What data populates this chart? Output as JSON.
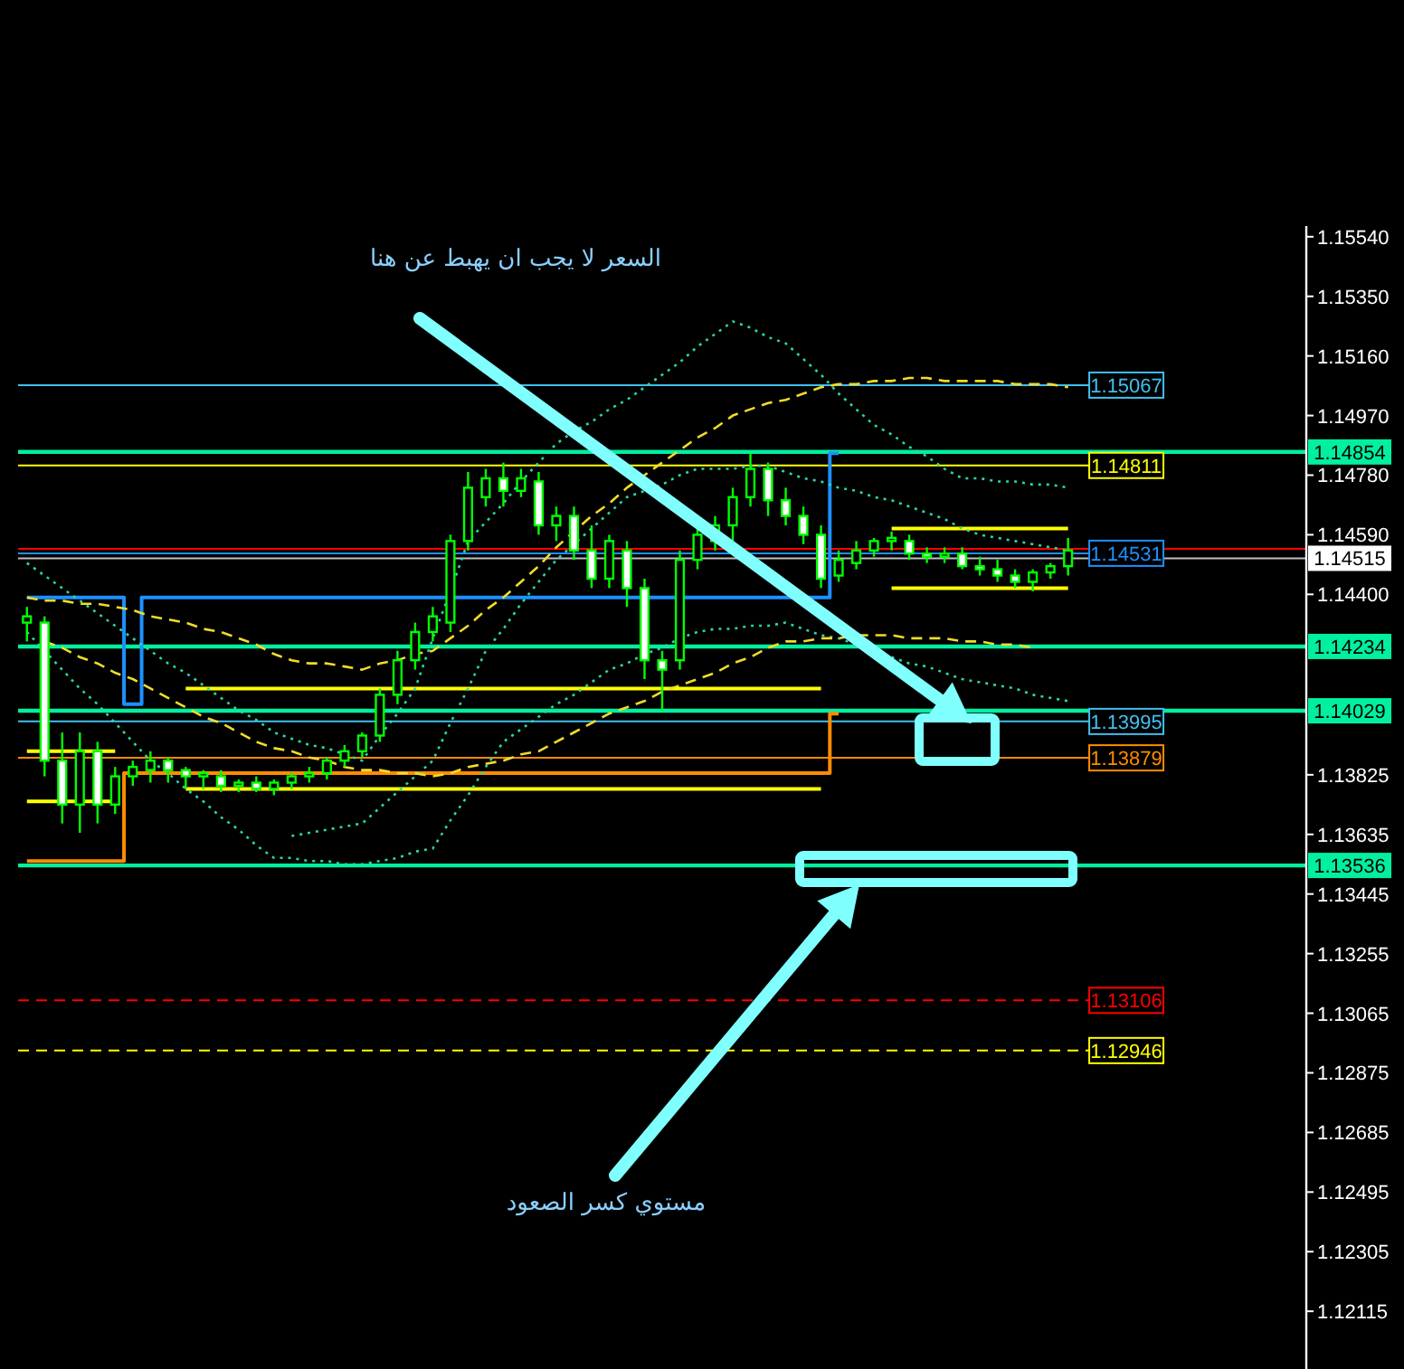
{
  "chart_data": {
    "type": "candlestick",
    "categories": [
      null,
      null,
      null,
      null,
      null,
      null,
      null,
      null,
      null,
      null,
      null,
      null,
      null,
      null,
      null,
      null,
      null,
      null,
      null,
      null,
      null,
      null,
      null,
      null,
      null,
      null,
      null,
      null,
      null,
      null,
      null,
      null,
      null,
      null,
      null,
      null,
      null,
      null,
      null,
      null,
      null,
      null,
      null,
      null,
      null,
      null,
      null,
      null,
      null,
      null,
      null,
      null,
      null,
      null,
      null,
      null,
      null,
      null,
      null,
      null,
      null,
      null,
      null,
      null,
      null,
      null,
      null,
      null,
      null,
      null,
      null,
      null,
      null
    ],
    "ohlc": [
      [
        1.1431,
        1.1436,
        1.1425,
        1.1433
      ],
      [
        1.1431,
        1.1433,
        1.1382,
        1.1387
      ],
      [
        1.1387,
        1.1396,
        1.1367,
        1.1373
      ],
      [
        1.1373,
        1.1396,
        1.1364,
        1.139
      ],
      [
        1.139,
        1.1393,
        1.1367,
        1.1373
      ],
      [
        1.1373,
        1.1385,
        1.137,
        1.1382
      ],
      [
        1.1382,
        1.1387,
        1.1379,
        1.1385
      ],
      [
        1.1384,
        1.139,
        1.138,
        1.1387
      ],
      [
        1.1387,
        1.1388,
        1.138,
        1.1384
      ],
      [
        1.1384,
        1.1385,
        1.1378,
        1.1382
      ],
      [
        1.1382,
        1.1384,
        1.1378,
        1.1383
      ],
      [
        1.1382,
        1.1384,
        1.1377,
        1.1379
      ],
      [
        1.1379,
        1.1381,
        1.1377,
        1.138
      ],
      [
        1.138,
        1.1382,
        1.1377,
        1.1378
      ],
      [
        1.1378,
        1.1381,
        1.1376,
        1.138
      ],
      [
        1.138,
        1.1383,
        1.1378,
        1.1382
      ],
      [
        1.1382,
        1.1385,
        1.138,
        1.1383
      ],
      [
        1.1383,
        1.1388,
        1.1381,
        1.1387
      ],
      [
        1.1387,
        1.1392,
        1.1385,
        1.139
      ],
      [
        1.139,
        1.1396,
        1.1388,
        1.1395
      ],
      [
        1.1395,
        1.141,
        1.1393,
        1.1408
      ],
      [
        1.1408,
        1.1422,
        1.1405,
        1.1419
      ],
      [
        1.1419,
        1.1431,
        1.1416,
        1.1428
      ],
      [
        1.1428,
        1.1436,
        1.1425,
        1.1433
      ],
      [
        1.1431,
        1.1459,
        1.1428,
        1.1457
      ],
      [
        1.1457,
        1.1479,
        1.1454,
        1.1474
      ],
      [
        1.1471,
        1.148,
        1.1468,
        1.1477
      ],
      [
        1.1477,
        1.1482,
        1.1468,
        1.1473
      ],
      [
        1.1473,
        1.148,
        1.1471,
        1.1477
      ],
      [
        1.1476,
        1.1479,
        1.1459,
        1.1462
      ],
      [
        1.1462,
        1.1468,
        1.1457,
        1.1465
      ],
      [
        1.1465,
        1.1468,
        1.1451,
        1.1454
      ],
      [
        1.1454,
        1.1462,
        1.1442,
        1.1445
      ],
      [
        1.1445,
        1.1459,
        1.1442,
        1.1457
      ],
      [
        1.1454,
        1.1457,
        1.1436,
        1.1442
      ],
      [
        1.1442,
        1.1445,
        1.1413,
        1.1419
      ],
      [
        1.1419,
        1.1422,
        1.1403,
        1.1416
      ],
      [
        1.1419,
        1.1454,
        1.1416,
        1.1451
      ],
      [
        1.1451,
        1.1462,
        1.1448,
        1.1459
      ],
      [
        1.1457,
        1.1465,
        1.1454,
        1.1462
      ],
      [
        1.1462,
        1.1474,
        1.1457,
        1.1471
      ],
      [
        1.1471,
        1.1485,
        1.1468,
        1.148
      ],
      [
        1.148,
        1.1482,
        1.1465,
        1.147
      ],
      [
        1.147,
        1.1474,
        1.1462,
        1.1465
      ],
      [
        1.1465,
        1.1468,
        1.1456,
        1.1459
      ],
      [
        1.1459,
        1.1462,
        1.1442,
        1.1445
      ],
      [
        1.1446,
        1.1454,
        1.1444,
        1.1451
      ],
      [
        1.145,
        1.1457,
        1.1448,
        1.1454
      ],
      [
        1.1454,
        1.1458,
        1.1452,
        1.1457
      ],
      [
        1.1457,
        1.146,
        1.1454,
        1.1458
      ],
      [
        1.1457,
        1.1459,
        1.1451,
        1.1453
      ],
      [
        1.1453,
        1.1455,
        1.145,
        1.1452
      ],
      [
        1.1452,
        1.1455,
        1.145,
        1.1453
      ],
      [
        1.1453,
        1.1455,
        1.1448,
        1.1449
      ],
      [
        1.1449,
        1.1452,
        1.1446,
        1.1448
      ],
      [
        1.1448,
        1.1451,
        1.1444,
        1.1446
      ],
      [
        1.1446,
        1.1448,
        1.1442,
        1.1444
      ],
      [
        1.1444,
        1.1448,
        1.1441,
        1.1447
      ],
      [
        1.1447,
        1.145,
        1.1445,
        1.1449
      ],
      [
        1.1449,
        1.1458,
        1.1446,
        1.1454
      ],
      null,
      null,
      null,
      null,
      null,
      null,
      null,
      null,
      null,
      null,
      null,
      null,
      null
    ],
    "color": "#00ff00",
    "colors": [
      "#000000",
      "#ffffff",
      "#ffffff",
      "#000000",
      "#ffffff",
      "#000000",
      "#000000",
      "#000000",
      "#ffffff",
      "#ffffff",
      "#000000",
      "#ffffff",
      "#000000",
      "#ffffff",
      "#000000",
      "#000000",
      "#000000",
      "#000000",
      "#000000",
      "#000000",
      "#000000",
      "#000000",
      "#000000",
      "#000000",
      "#000000",
      "#000000",
      "#000000",
      "#ffffff",
      "#000000",
      "#ffffff",
      "#000000",
      "#ffffff",
      "#ffffff",
      "#000000",
      "#ffffff",
      "#ffffff",
      "#ffffff",
      "#000000",
      "#000000",
      "#000000",
      "#000000",
      "#000000",
      "#ffffff",
      "#ffffff",
      "#ffffff",
      "#ffffff",
      "#000000",
      "#000000",
      "#000000",
      "#000000",
      "#ffffff",
      "#ffffff",
      "#000000",
      "#ffffff",
      "#ffffff",
      "#ffffff",
      "#ffffff",
      "#000000",
      "#000000",
      "#000000",
      null,
      null,
      null,
      null,
      null,
      null,
      null,
      null,
      null,
      null,
      null,
      null,
      null
    ],
    "series": [
      {
        "type": "step",
        "color": "#1e90ff",
        "line_style": "solid",
        "values": [
          1.1439,
          1.1439,
          1.1439,
          1.1439,
          1.1439,
          1.1439,
          1.1405,
          1.1439,
          1.1439,
          1.1439,
          1.1439,
          1.1439,
          1.1439,
          1.1439,
          1.1439,
          1.1439,
          1.1439,
          1.1439,
          1.1439,
          1.1439,
          1.1439,
          1.1439,
          1.1439,
          1.1439,
          1.1439,
          1.1439,
          1.1439,
          1.1439,
          1.1439,
          1.1439,
          1.1439,
          1.1439,
          1.1439,
          1.1439,
          1.1439,
          1.1439,
          1.1439,
          1.1439,
          1.1439,
          1.1439,
          1.1439,
          1.1439,
          1.1439,
          1.1439,
          1.1439,
          1.1439,
          1.1485,
          null,
          null,
          null,
          null,
          null,
          null,
          null,
          null,
          null,
          null,
          null,
          null,
          null,
          null,
          null,
          null,
          null,
          null,
          null,
          null,
          null,
          null,
          null,
          null,
          null,
          null
        ]
      },
      {
        "type": "step",
        "color": "#ff8c00",
        "line_style": "solid",
        "values": [
          1.1355,
          1.1355,
          1.1355,
          1.1355,
          1.1355,
          1.1355,
          1.1383,
          1.1383,
          1.1383,
          1.1383,
          1.1383,
          1.1383,
          1.1383,
          1.1383,
          1.1383,
          1.1383,
          1.1383,
          1.1383,
          1.1383,
          1.1383,
          1.1383,
          1.1383,
          1.1383,
          1.1383,
          1.1383,
          1.1383,
          1.1383,
          1.1383,
          1.1383,
          1.1383,
          1.1383,
          1.1383,
          1.1383,
          1.1383,
          1.1383,
          1.1383,
          1.1383,
          1.1383,
          1.1383,
          1.1383,
          1.1383,
          1.1383,
          1.1383,
          1.1383,
          1.1383,
          1.1383,
          1.1402,
          null,
          null,
          null,
          null,
          null,
          null,
          null,
          null,
          null,
          null,
          null,
          null,
          null,
          null,
          null,
          null,
          null,
          null,
          null,
          null,
          null,
          null,
          null,
          null,
          null,
          null
        ]
      },
      {
        "type": "line",
        "color": "#ffff00",
        "line_style": "solid",
        "values": [
          1.139,
          1.139,
          1.139,
          1.139,
          1.139,
          1.139,
          null,
          null,
          null,
          null,
          null,
          null,
          null,
          null,
          null,
          null,
          null,
          null,
          null,
          null,
          null,
          null,
          null,
          null,
          null,
          null,
          null,
          null,
          null,
          null,
          null,
          null,
          null,
          null,
          null,
          null,
          null,
          null,
          null,
          null,
          null,
          null,
          null,
          null,
          null,
          null,
          null,
          null,
          null,
          null,
          null,
          null,
          null,
          null,
          null,
          null,
          null,
          null,
          null,
          null,
          null,
          null,
          null,
          null,
          null,
          null,
          null,
          null,
          null,
          null,
          null,
          null,
          null
        ]
      },
      {
        "type": "line",
        "color": "#ffff00",
        "line_style": "solid",
        "values": [
          1.1374,
          1.1374,
          1.1374,
          1.1374,
          1.1374,
          1.1374,
          null,
          null,
          null,
          null,
          null,
          null,
          null,
          null,
          null,
          null,
          null,
          null,
          null,
          null,
          null,
          null,
          null,
          null,
          null,
          null,
          null,
          null,
          null,
          null,
          null,
          null,
          null,
          null,
          null,
          null,
          null,
          null,
          null,
          null,
          null,
          null,
          null,
          null,
          null,
          null,
          null,
          null,
          null,
          null,
          null,
          null,
          null,
          null,
          null,
          null,
          null,
          null,
          null,
          null,
          null,
          null,
          null,
          null,
          null,
          null,
          null,
          null,
          null,
          null,
          null,
          null,
          null
        ]
      },
      {
        "type": "line",
        "color": "#ffff00",
        "line_style": "solid",
        "values": [
          null,
          null,
          null,
          null,
          null,
          null,
          null,
          null,
          null,
          1.141,
          1.141,
          1.141,
          1.141,
          1.141,
          1.141,
          1.141,
          1.141,
          1.141,
          1.141,
          1.141,
          1.141,
          1.141,
          1.141,
          1.141,
          1.141,
          1.141,
          1.141,
          1.141,
          1.141,
          1.141,
          1.141,
          1.141,
          1.141,
          1.141,
          1.141,
          1.141,
          1.141,
          1.141,
          1.141,
          1.141,
          1.141,
          1.141,
          1.141,
          1.141,
          1.141,
          1.141,
          null,
          null,
          null,
          null,
          null,
          null,
          null,
          null,
          null,
          null,
          null,
          null,
          null,
          null,
          null,
          null,
          null,
          null,
          null,
          null,
          null,
          null,
          null,
          null,
          null,
          null,
          null
        ]
      },
      {
        "type": "line",
        "color": "#ffff00",
        "line_style": "solid",
        "values": [
          null,
          null,
          null,
          null,
          null,
          null,
          null,
          null,
          null,
          1.1378,
          1.1378,
          1.1378,
          1.1378,
          1.1378,
          1.1378,
          1.1378,
          1.1378,
          1.1378,
          1.1378,
          1.1378,
          1.1378,
          1.1378,
          1.1378,
          1.1378,
          1.1378,
          1.1378,
          1.1378,
          1.1378,
          1.1378,
          1.1378,
          1.1378,
          1.1378,
          1.1378,
          1.1378,
          1.1378,
          1.1378,
          1.1378,
          1.1378,
          1.1378,
          1.1378,
          1.1378,
          1.1378,
          1.1378,
          1.1378,
          1.1378,
          1.1378,
          null,
          null,
          null,
          null,
          null,
          null,
          null,
          null,
          null,
          null,
          null,
          null,
          null,
          null,
          null,
          null,
          null,
          null,
          null,
          null,
          null,
          null,
          null,
          null,
          null,
          null,
          null
        ]
      },
      {
        "type": "line",
        "color": "#ffff00",
        "line_style": "solid",
        "values": [
          null,
          null,
          null,
          null,
          null,
          null,
          null,
          null,
          null,
          null,
          null,
          null,
          null,
          null,
          null,
          null,
          null,
          null,
          null,
          null,
          null,
          null,
          null,
          null,
          null,
          null,
          null,
          null,
          null,
          null,
          null,
          null,
          null,
          null,
          null,
          null,
          null,
          null,
          null,
          null,
          null,
          null,
          null,
          null,
          null,
          null,
          null,
          null,
          null,
          1.1461,
          1.1461,
          1.1461,
          1.1461,
          1.1461,
          1.1461,
          1.1461,
          1.1461,
          1.1461,
          1.1461,
          1.1461,
          null,
          null,
          null,
          null,
          null,
          null,
          null,
          null,
          null,
          null,
          null,
          null,
          null
        ]
      },
      {
        "type": "line",
        "color": "#ffff00",
        "line_style": "solid",
        "values": [
          null,
          null,
          null,
          null,
          null,
          null,
          null,
          null,
          null,
          null,
          null,
          null,
          null,
          null,
          null,
          null,
          null,
          null,
          null,
          null,
          null,
          null,
          null,
          null,
          null,
          null,
          null,
          null,
          null,
          null,
          null,
          null,
          null,
          null,
          null,
          null,
          null,
          null,
          null,
          null,
          null,
          null,
          null,
          null,
          null,
          null,
          null,
          null,
          null,
          1.1442,
          1.1442,
          1.1442,
          1.1442,
          1.1442,
          1.1442,
          1.1442,
          1.1442,
          1.1442,
          1.1442,
          1.1442,
          null,
          null,
          null,
          null,
          null,
          null,
          null,
          null,
          null,
          null,
          null,
          null,
          null
        ]
      },
      {
        "type": "line",
        "color": "#28d8a0",
        "line_style": "dotted",
        "values": [
          1.145,
          1.1446,
          1.1442,
          1.1438,
          1.1434,
          1.143,
          1.1426,
          1.1422,
          1.1418,
          1.1415,
          1.1411,
          1.1407,
          1.1403,
          1.14,
          1.1396,
          1.1394,
          1.1392,
          1.1391,
          1.1389,
          1.1387,
          1.1395,
          1.1402,
          1.141,
          1.1426,
          1.1441,
          1.1457,
          1.1463,
          1.1469,
          1.1476,
          1.1482,
          1.1488,
          1.1492,
          1.1495,
          1.1499,
          1.1502,
          1.1506,
          1.151,
          1.1514,
          1.1519,
          1.1523,
          1.1527,
          1.1525,
          1.1522,
          1.152,
          1.1515,
          1.151,
          1.1504,
          1.1499,
          1.1494,
          1.1491,
          1.1487,
          1.1484,
          1.148,
          1.1477,
          1.1477,
          1.1476,
          1.1476,
          1.1475,
          1.1475,
          1.1474,
          null,
          null,
          null,
          null,
          null,
          null,
          null,
          null,
          null,
          null,
          null,
          null,
          null
        ]
      },
      {
        "type": "line",
        "color": "#28d8a0",
        "line_style": "dotted",
        "values": [
          1.1428,
          1.1422,
          1.1416,
          1.141,
          1.1405,
          1.1399,
          1.1393,
          1.1387,
          1.1383,
          1.1378,
          1.1374,
          1.1369,
          1.1365,
          1.136,
          1.1356,
          1.1356,
          1.1355,
          1.1355,
          1.1354,
          1.1354,
          1.1355,
          1.1356,
          1.1358,
          1.1359,
          1.1368,
          1.1376,
          1.1385,
          1.1393,
          1.1397,
          1.1401,
          1.1405,
          1.1408,
          1.1412,
          1.1416,
          1.1418,
          1.1421,
          1.1423,
          1.1426,
          1.1428,
          1.1429,
          1.1429,
          1.143,
          1.143,
          1.1431,
          1.1429,
          1.1427,
          1.1426,
          1.1424,
          1.1422,
          1.142,
          1.1418,
          1.1417,
          1.1415,
          1.1413,
          1.1412,
          1.1411,
          1.141,
          1.1408,
          1.1407,
          1.1406,
          null,
          null,
          null,
          null,
          null,
          null,
          null,
          null,
          null,
          null,
          null,
          null,
          null
        ]
      },
      {
        "type": "line",
        "color": "#28d8a0",
        "line_style": "dotted",
        "values": [
          null,
          null,
          null,
          null,
          null,
          null,
          null,
          null,
          null,
          null,
          null,
          null,
          null,
          null,
          null,
          1.1363,
          1.1364,
          1.1365,
          1.1366,
          1.1367,
          1.1372,
          1.1377,
          1.1382,
          1.1387,
          1.1399,
          1.141,
          1.1422,
          1.1429,
          1.1437,
          1.1444,
          1.1451,
          1.1456,
          1.1461,
          1.1466,
          1.1471,
          1.1473,
          1.1475,
          1.1478,
          1.148,
          1.148,
          1.148,
          1.1481,
          1.1481,
          1.1479,
          1.1477,
          1.1476,
          1.1474,
          1.1473,
          1.1471,
          1.147,
          1.1468,
          1.1466,
          1.1464,
          1.1461,
          1.1459,
          1.1458,
          1.1457,
          1.1456,
          1.1455,
          1.1454,
          null,
          null,
          null,
          null,
          null,
          null,
          null,
          null,
          null,
          null,
          null,
          null,
          null
        ]
      },
      {
        "type": "line",
        "color": "#f0dc28",
        "line_style": "dashed",
        "values": [
          1.1439,
          1.1438,
          1.1438,
          1.1437,
          1.1437,
          1.1436,
          1.1435,
          1.1433,
          1.1432,
          1.1431,
          1.1429,
          1.1428,
          1.1426,
          1.1424,
          1.1421,
          1.1419,
          1.1418,
          1.1418,
          1.1417,
          1.1416,
          1.1418,
          1.1419,
          1.1421,
          1.1422,
          1.1426,
          1.143,
          1.1435,
          1.1439,
          1.1444,
          1.1449,
          1.1455,
          1.146,
          1.1465,
          1.1469,
          1.1474,
          1.1478,
          1.1482,
          1.1486,
          1.149,
          1.1493,
          1.1497,
          1.1499,
          1.1501,
          1.1502,
          1.1504,
          1.1506,
          1.1507,
          1.1507,
          1.1508,
          1.1508,
          1.1509,
          1.1509,
          1.1508,
          1.1508,
          1.1508,
          1.1508,
          1.1507,
          1.1507,
          1.1507,
          1.1506,
          null,
          null,
          null,
          null,
          null,
          null,
          null,
          null,
          null,
          null,
          null,
          null,
          null
        ]
      },
      {
        "type": "line",
        "color": "#f0dc28",
        "line_style": "dashed",
        "values": [
          null,
          1.1425,
          1.1423,
          1.142,
          1.1418,
          1.1415,
          1.1413,
          1.141,
          1.1407,
          1.1404,
          1.1401,
          1.1399,
          1.1396,
          1.1393,
          1.1391,
          1.139,
          1.1388,
          1.1387,
          1.1385,
          1.1384,
          1.1384,
          1.1383,
          1.1383,
          1.1382,
          1.1383,
          1.1385,
          1.1386,
          1.1387,
          1.1389,
          1.139,
          1.1393,
          1.1396,
          1.1399,
          1.1402,
          1.1404,
          1.1406,
          1.1409,
          1.1411,
          1.1413,
          1.1415,
          1.1418,
          1.142,
          1.1423,
          1.1425,
          1.1425,
          1.1426,
          1.1426,
          1.1427,
          1.1427,
          1.1427,
          1.1426,
          1.1426,
          1.1426,
          1.1425,
          1.1425,
          1.1424,
          1.1424,
          1.1423,
          null,
          null,
          null,
          null,
          null,
          null,
          null,
          null,
          null,
          null,
          null,
          null,
          null,
          null,
          null
        ]
      }
    ],
    "ylim": [
      1.11931,
      1.15574
    ],
    "yticks": [
      {
        "value": 1.1554,
        "label": "1.15540"
      },
      {
        "value": 1.1535,
        "label": "1.15350"
      },
      {
        "value": 1.1516,
        "label": "1.15160"
      },
      {
        "value": 1.1497,
        "label": "1.14970"
      },
      {
        "value": 1.1478,
        "label": "1.14780"
      },
      {
        "value": 1.1459,
        "label": "1.14590"
      },
      {
        "value": 1.144,
        "label": "1.14400"
      },
      {
        "value": 1.13825,
        "label": "1.13825"
      },
      {
        "value": 1.13635,
        "label": "1.13635"
      },
      {
        "value": 1.13445,
        "label": "1.13445"
      },
      {
        "value": 1.13255,
        "label": "1.13255"
      },
      {
        "value": 1.13065,
        "label": "1.13065"
      },
      {
        "value": 1.12875,
        "label": "1.12875"
      },
      {
        "value": 1.12685,
        "label": "1.12685"
      },
      {
        "value": 1.12495,
        "label": "1.12495"
      },
      {
        "value": 1.12305,
        "label": "1.12305"
      },
      {
        "value": 1.12115,
        "label": "1.12115"
      }
    ],
    "tick_labels": "y",
    "ref_lines": [
      {
        "axis": "y",
        "value": 1.15067,
        "label": "1.15067",
        "color": "#40c0f0"
      },
      {
        "axis": "y",
        "value": 1.14854,
        "label": "1.14854",
        "color": "#00f0a0"
      },
      {
        "axis": "y",
        "value": 1.14811,
        "label": "1.14811",
        "color": "#ffff00"
      },
      {
        "axis": "y",
        "value": 1.14545,
        "label": null,
        "color": "#ff0000"
      },
      {
        "axis": "y",
        "value": 1.14531,
        "label": "1.14531",
        "color": "#1e90ff"
      },
      {
        "axis": "y",
        "value": 1.14515,
        "label": "1.14515",
        "color": "#c0c0c0"
      },
      {
        "axis": "y",
        "value": 1.14234,
        "label": "1.14234",
        "color": "#00f0a0"
      },
      {
        "axis": "y",
        "value": 1.14029,
        "label": "1.14029",
        "color": "#00f0a0"
      },
      {
        "axis": "y",
        "value": 1.13995,
        "label": "1.13995",
        "color": "#40c0f0"
      },
      {
        "axis": "y",
        "value": 1.13879,
        "label": "1.13879",
        "color": "#ff8c00"
      },
      {
        "axis": "y",
        "value": 1.13536,
        "label": "1.13536",
        "color": "#00f0a0"
      },
      {
        "axis": "y",
        "value": 1.13106,
        "label": "1.13106",
        "color": "#ff0000",
        "line_style": "dashed"
      },
      {
        "axis": "y",
        "value": 1.12946,
        "label": "1.12946",
        "color": "#ffff00",
        "line_style": "dashed"
      }
    ],
    "annotations": [
      "السعر لا يجب ان يهبط عن هنا",
      "مستوي كسر الصعود"
    ],
    "grid": false,
    "marker": "none"
  }
}
